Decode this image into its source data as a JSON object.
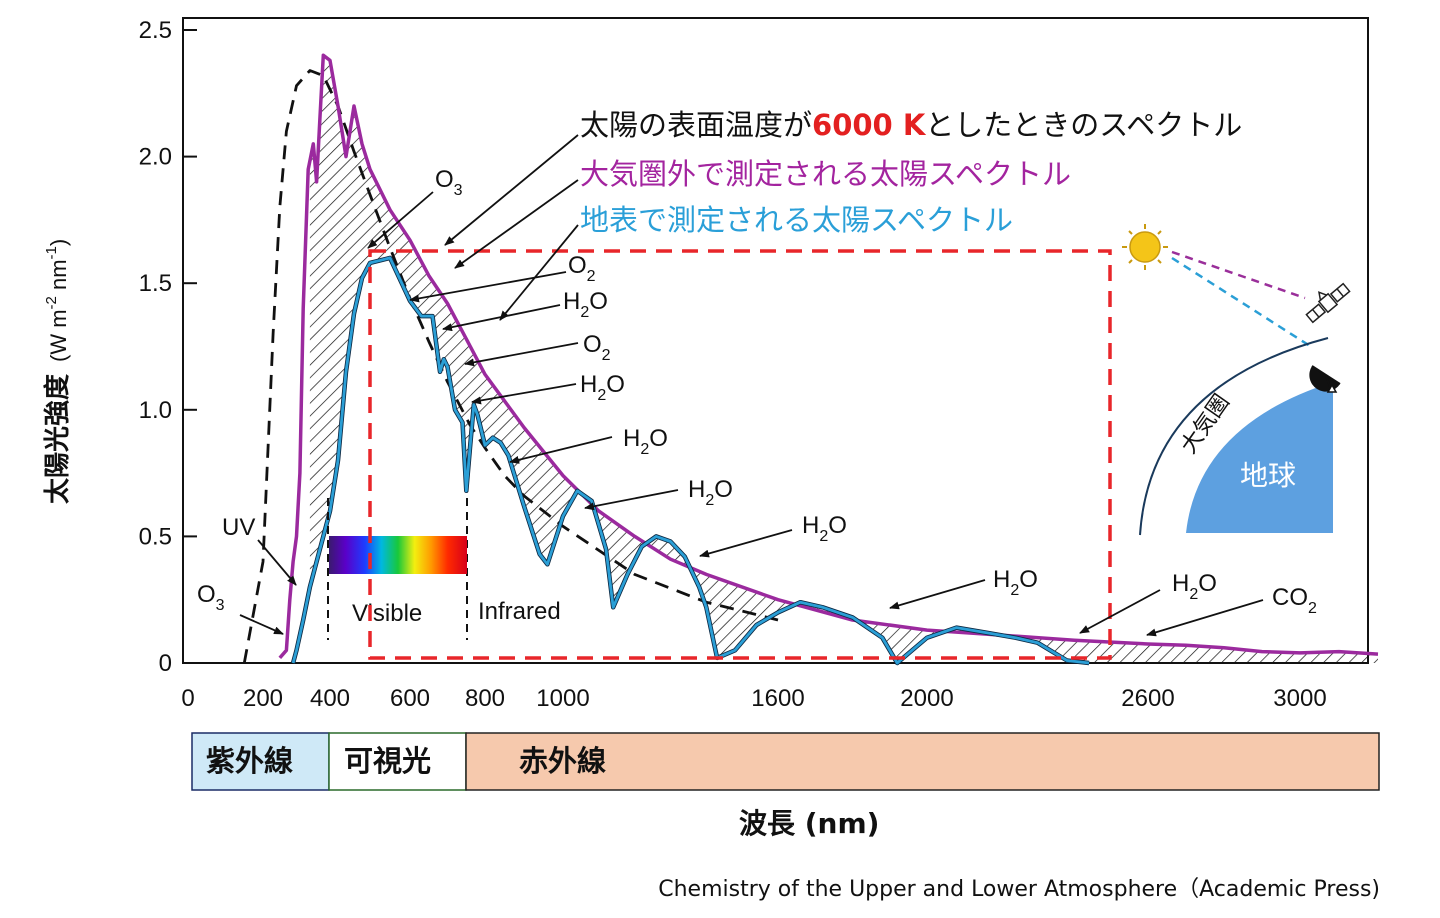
{
  "chart_data": {
    "type": "line",
    "title": "",
    "xlabel": "波長 (nm)",
    "ylabel": "太陽光強度",
    "ylabel_unit": "(W m-2 nm-1)",
    "xlim": [
      0,
      3200
    ],
    "ylim": [
      0,
      2.5
    ],
    "x_ticks": [
      {
        "value": 0,
        "label": "0"
      },
      {
        "value": 200,
        "label": "200"
      },
      {
        "value": 400,
        "label": "400"
      },
      {
        "value": 600,
        "label": "600"
      },
      {
        "value": 800,
        "label": "800"
      },
      {
        "value": 1000,
        "label": "1000"
      },
      {
        "value": 1600,
        "label": "1600"
      },
      {
        "value": 2000,
        "label": "2000"
      },
      {
        "value": 2600,
        "label": "2600"
      },
      {
        "value": 3000,
        "label": "3000"
      }
    ],
    "y_ticks": [
      {
        "value": 0,
        "label": "0"
      },
      {
        "value": 0.5,
        "label": "0.5"
      },
      {
        "value": 1.0,
        "label": "1.0"
      },
      {
        "value": 1.5,
        "label": "1.5"
      },
      {
        "value": 2.0,
        "label": "2.0"
      },
      {
        "value": 2.5,
        "label": "2.5"
      }
    ],
    "series": [
      {
        "name": "太陽の表面温度が6000 Kとしたときのスペクトル",
        "color": "#111111",
        "style": "dashed",
        "x": [
          150,
          200,
          230,
          250,
          270,
          300,
          340,
          380,
          420,
          460,
          500,
          550,
          600,
          650,
          700,
          760,
          800,
          850,
          900,
          1000,
          1200,
          1400,
          1600
        ],
        "y": [
          0.0,
          0.4,
          1.3,
          1.8,
          2.1,
          2.28,
          2.34,
          2.32,
          2.2,
          2.02,
          1.85,
          1.64,
          1.44,
          1.27,
          1.11,
          0.94,
          0.85,
          0.74,
          0.66,
          0.54,
          0.35,
          0.24,
          0.17
        ]
      },
      {
        "name": "大気圏外で測定される太陽スペクトル",
        "color": "#9b2a9e",
        "style": "solid",
        "x": [
          250,
          270,
          280,
          290,
          300,
          310,
          320,
          335,
          350,
          360,
          370,
          380,
          400,
          420,
          440,
          460,
          480,
          500,
          550,
          600,
          650,
          700,
          750,
          800,
          900,
          1000,
          1100,
          1200,
          1300,
          1400,
          1600,
          1800,
          2000,
          2200,
          2400,
          2600,
          2700,
          2800,
          2900,
          3000,
          3100,
          3200
        ],
        "y": [
          0.02,
          0.05,
          0.25,
          0.4,
          0.5,
          0.75,
          1.4,
          1.95,
          2.05,
          1.9,
          2.15,
          2.4,
          2.38,
          2.2,
          2.0,
          2.2,
          2.05,
          1.95,
          1.79,
          1.67,
          1.53,
          1.42,
          1.28,
          1.14,
          0.93,
          0.74,
          0.6,
          0.5,
          0.41,
          0.35,
          0.25,
          0.17,
          0.13,
          0.11,
          0.09,
          0.075,
          0.07,
          0.06,
          0.045,
          0.04,
          0.045,
          0.035
        ]
      },
      {
        "name": "地表で測定される太陽スペクトル",
        "color": "#2b9fd6",
        "style": "solid",
        "x": [
          290,
          300,
          320,
          340,
          360,
          380,
          400,
          420,
          440,
          460,
          480,
          500,
          550,
          600,
          630,
          660,
          680,
          690,
          700,
          720,
          740,
          750,
          760,
          770,
          780,
          800,
          820,
          840,
          860,
          900,
          940,
          960,
          1000,
          1040,
          1080,
          1120,
          1140,
          1180,
          1220,
          1260,
          1300,
          1340,
          1380,
          1400,
          1430,
          1480,
          1540,
          1600,
          1660,
          1720,
          1800,
          1880,
          1920,
          1960,
          2000,
          2080,
          2160,
          2240,
          2300,
          2380,
          2440
        ],
        "y": [
          0.0,
          0.05,
          0.17,
          0.3,
          0.4,
          0.5,
          0.6,
          0.8,
          1.15,
          1.38,
          1.52,
          1.58,
          1.6,
          1.43,
          1.37,
          1.37,
          1.15,
          1.2,
          1.17,
          1.0,
          0.95,
          0.68,
          0.85,
          1.02,
          0.98,
          0.86,
          0.89,
          0.87,
          0.82,
          0.62,
          0.43,
          0.39,
          0.58,
          0.68,
          0.64,
          0.45,
          0.22,
          0.35,
          0.46,
          0.5,
          0.48,
          0.42,
          0.3,
          0.22,
          0.02,
          0.05,
          0.15,
          0.2,
          0.24,
          0.22,
          0.18,
          0.1,
          0.0,
          0.05,
          0.1,
          0.14,
          0.12,
          0.1,
          0.08,
          0.01,
          0.0
        ]
      }
    ],
    "annotations": {
      "uv": "UV",
      "o3_left": {
        "base": "O",
        "sub": "3"
      },
      "o3_top": {
        "base": "O",
        "sub": "3"
      },
      "o2_a": {
        "base": "O",
        "sub": "2"
      },
      "h2o_a": {
        "base": "H",
        "sub": "2",
        "tail": "O"
      },
      "o2_b": {
        "base": "O",
        "sub": "2"
      },
      "h2o_b": {
        "base": "H",
        "sub": "2",
        "tail": "O"
      },
      "h2o_c": {
        "base": "H",
        "sub": "2",
        "tail": "O"
      },
      "h2o_d": {
        "base": "H",
        "sub": "2",
        "tail": "O"
      },
      "h2o_e": {
        "base": "H",
        "sub": "2",
        "tail": "O"
      },
      "h2o_f": {
        "base": "H",
        "sub": "2",
        "tail": "O"
      },
      "h2o_g": {
        "base": "H",
        "sub": "2",
        "tail": "O"
      },
      "co2": {
        "base": "CO",
        "sub": "2"
      },
      "visible": "Visible",
      "infrared": "Infrared"
    },
    "legend": [
      {
        "pre": "太陽の表面温度が",
        "highlight": "6000 K",
        "post": "としたときのスペクトル",
        "color": "#111111",
        "highlight_color": "#e32020"
      },
      {
        "pre": "大気圏外で測定される太陽スペクトル",
        "highlight": "",
        "post": "",
        "color": "#a3249f",
        "highlight_color": ""
      },
      {
        "pre": "地表で測定される太陽スペクトル",
        "highlight": "",
        "post": "",
        "color": "#2a9fd8",
        "highlight_color": ""
      }
    ],
    "bands": [
      {
        "label": "紫外線",
        "color": "#cfe9f7"
      },
      {
        "label": "可視光",
        "color": "#ffffff"
      },
      {
        "label": "赤外線",
        "color": "#f6c9ad"
      }
    ],
    "inset": {
      "earth": "地球",
      "atmosphere": "大気圏"
    },
    "source": "Chemistry of the Upper and Lower Atmosphere（Academic Press)"
  }
}
